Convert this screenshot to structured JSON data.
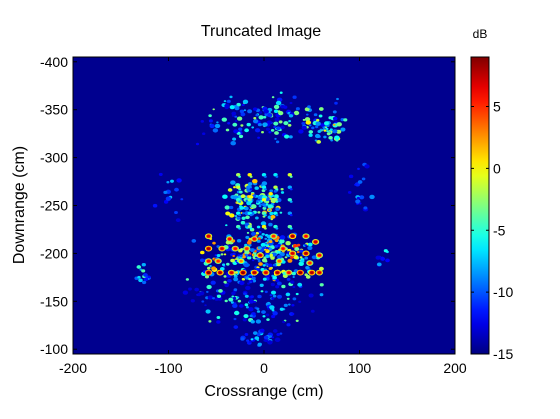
{
  "chart_data": {
    "type": "heatmap",
    "title": "Truncated Image",
    "xlabel": "Crossrange (cm)",
    "ylabel": "Downrange (cm)",
    "xlim": [
      -200,
      200
    ],
    "ylim": [
      -405,
      -95
    ],
    "y_reversed": true,
    "x_ticks": [
      -200,
      -100,
      0,
      100,
      200
    ],
    "x_tick_labels": [
      "-200",
      "-100",
      "0",
      "100",
      "200"
    ],
    "y_ticks": [
      -400,
      -350,
      -300,
      -250,
      -200,
      -150,
      -100
    ],
    "y_tick_labels": [
      "-400",
      "-350",
      "-300",
      "-250",
      "-200",
      "-150",
      "-100"
    ],
    "colorbar": {
      "label": "dB",
      "range": [
        -15,
        9
      ],
      "ticks": [
        5,
        0,
        -5,
        -10,
        -15
      ],
      "tick_labels": [
        "5",
        "0",
        "-5",
        "-10",
        "-15"
      ],
      "colormap": "jet"
    },
    "background_db": -15,
    "grid": false,
    "hotspots": [
      {
        "x": -58,
        "y": -218,
        "db": 7
      },
      {
        "x": -58,
        "y": -205,
        "db": 8
      },
      {
        "x": -58,
        "y": -192,
        "db": 6
      },
      {
        "x": -58,
        "y": -180,
        "db": 9
      },
      {
        "x": -46,
        "y": -180,
        "db": 8
      },
      {
        "x": -34,
        "y": -180,
        "db": 7
      },
      {
        "x": -22,
        "y": -180,
        "db": 9
      },
      {
        "x": -10,
        "y": -180,
        "db": 8
      },
      {
        "x": 2,
        "y": -180,
        "db": 7
      },
      {
        "x": 14,
        "y": -180,
        "db": 8
      },
      {
        "x": 26,
        "y": -180,
        "db": 6
      },
      {
        "x": 38,
        "y": -180,
        "db": 9
      },
      {
        "x": 50,
        "y": -180,
        "db": 8
      },
      {
        "x": 58,
        "y": -180,
        "db": 7
      },
      {
        "x": -44,
        "y": -205,
        "db": 7
      },
      {
        "x": -36,
        "y": -215,
        "db": 6
      },
      {
        "x": -30,
        "y": -205,
        "db": 6
      },
      {
        "x": -18,
        "y": -205,
        "db": 5
      },
      {
        "x": -10,
        "y": -215,
        "db": 6
      },
      {
        "x": -4,
        "y": -198,
        "db": 7
      },
      {
        "x": 10,
        "y": -218,
        "db": 5
      },
      {
        "x": 20,
        "y": -205,
        "db": 6
      },
      {
        "x": 30,
        "y": -218,
        "db": 8
      },
      {
        "x": 30,
        "y": -200,
        "db": 7
      },
      {
        "x": 44,
        "y": -218,
        "db": 6
      },
      {
        "x": 44,
        "y": -200,
        "db": 8
      },
      {
        "x": 54,
        "y": -212,
        "db": 7
      },
      {
        "x": 58,
        "y": -198,
        "db": 6
      },
      {
        "x": -48,
        "y": -192,
        "db": 5
      },
      {
        "x": 16,
        "y": -192,
        "db": 4
      },
      {
        "x": 48,
        "y": -190,
        "db": 5
      },
      {
        "x": -24,
        "y": -192,
        "db": 3
      }
    ],
    "clusters": [
      {
        "x": -5,
        "y": -198,
        "dx": 70,
        "dy": 28,
        "count": 260,
        "db_range": [
          -12,
          5
        ]
      },
      {
        "x": -10,
        "y": -252,
        "dx": 33,
        "dy": 30,
        "count": 140,
        "db_range": [
          -10,
          2
        ]
      },
      {
        "x": 0,
        "y": -340,
        "dx": 95,
        "dy": 30,
        "count": 150,
        "db_range": [
          -13,
          -2
        ]
      },
      {
        "x": 65,
        "y": -330,
        "dx": 22,
        "dy": 15,
        "count": 45,
        "db_range": [
          -10,
          2
        ]
      },
      {
        "x": -10,
        "y": -155,
        "dx": 75,
        "dy": 35,
        "count": 160,
        "db_range": [
          -13,
          -3
        ]
      },
      {
        "x": -125,
        "y": -180,
        "dx": 10,
        "dy": 12,
        "count": 16,
        "db_range": [
          -12,
          -3
        ]
      },
      {
        "x": 125,
        "y": -195,
        "dx": 8,
        "dy": 8,
        "count": 10,
        "db_range": [
          -13,
          -5
        ]
      },
      {
        "x": 100,
        "y": -265,
        "dx": 15,
        "dy": 35,
        "count": 18,
        "db_range": [
          -13,
          -7
        ]
      },
      {
        "x": -100,
        "y": -260,
        "dx": 15,
        "dy": 35,
        "count": 15,
        "db_range": [
          -13,
          -7
        ]
      },
      {
        "x": 0,
        "y": -112,
        "dx": 30,
        "dy": 10,
        "count": 30,
        "db_range": [
          -13,
          -6
        ]
      }
    ],
    "grid_points": {
      "x": [
        -27,
        -15,
        0,
        12,
        27
      ],
      "y": [
        -282,
        -269,
        -256,
        -242,
        -228
      ],
      "db_range": [
        -9,
        1
      ]
    }
  }
}
